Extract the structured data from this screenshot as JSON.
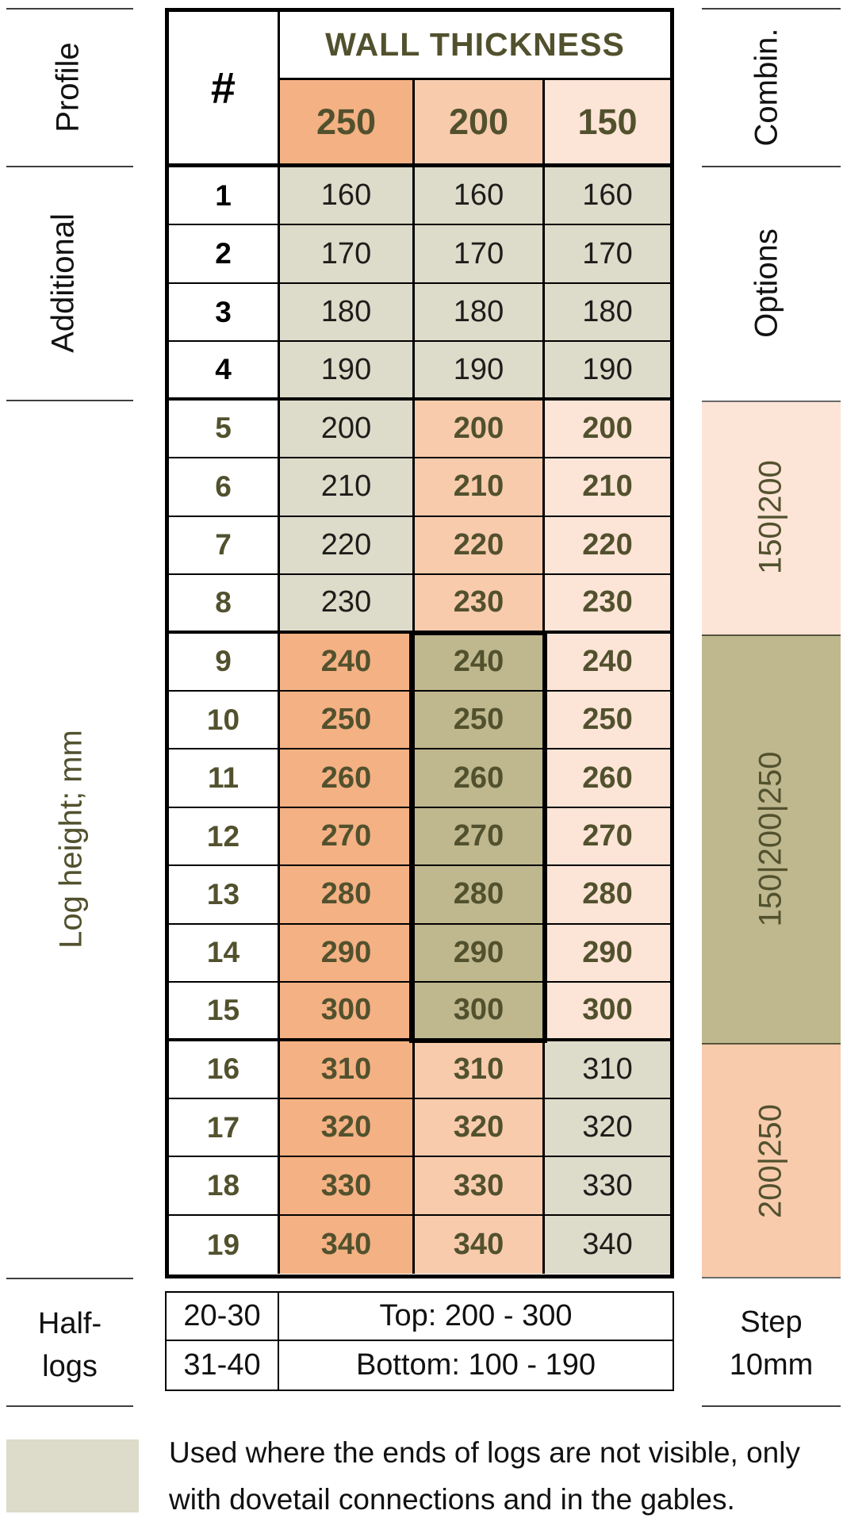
{
  "colors": {
    "orange": "#F4B183",
    "lorange": "#F8CBAD",
    "peach": "#FCE4D6",
    "khaki": "#BFB78E",
    "grey": "#DDDBC9",
    "olive": "#52512E"
  },
  "left_sidebar": {
    "profile": "Profile",
    "additional": "Additional",
    "log_height": "Log height; mm",
    "half_logs": [
      "Half-",
      "logs"
    ]
  },
  "right_sidebar": {
    "combination": "Combin.",
    "options": "Options",
    "bands": [
      {
        "label": "150|200"
      },
      {
        "label": "150|200|250"
      },
      {
        "label": "200|250"
      }
    ],
    "step": [
      "Step",
      "10mm"
    ]
  },
  "table": {
    "header": {
      "number_column": "#",
      "group_title": "WALL THICKNESS",
      "thickness_columns": [
        "250",
        "200",
        "150"
      ]
    },
    "rows": [
      {
        "num": "1",
        "group": "options",
        "values": [
          "160",
          "160",
          "160"
        ]
      },
      {
        "num": "2",
        "group": "options",
        "values": [
          "170",
          "170",
          "170"
        ]
      },
      {
        "num": "3",
        "group": "options",
        "values": [
          "180",
          "180",
          "180"
        ]
      },
      {
        "num": "4",
        "group": "options",
        "values": [
          "190",
          "190",
          "190"
        ]
      },
      {
        "num": "5",
        "group": "150_200",
        "values": [
          "200",
          "200",
          "200"
        ]
      },
      {
        "num": "6",
        "group": "150_200",
        "values": [
          "210",
          "210",
          "210"
        ]
      },
      {
        "num": "7",
        "group": "150_200",
        "values": [
          "220",
          "220",
          "220"
        ]
      },
      {
        "num": "8",
        "group": "150_200",
        "values": [
          "230",
          "230",
          "230"
        ]
      },
      {
        "num": "9",
        "group": "150_200_250",
        "values": [
          "240",
          "240",
          "240"
        ]
      },
      {
        "num": "10",
        "group": "150_200_250",
        "values": [
          "250",
          "250",
          "250"
        ]
      },
      {
        "num": "11",
        "group": "150_200_250",
        "values": [
          "260",
          "260",
          "260"
        ]
      },
      {
        "num": "12",
        "group": "150_200_250",
        "values": [
          "270",
          "270",
          "270"
        ]
      },
      {
        "num": "13",
        "group": "150_200_250",
        "values": [
          "280",
          "280",
          "280"
        ]
      },
      {
        "num": "14",
        "group": "150_200_250",
        "values": [
          "290",
          "290",
          "290"
        ]
      },
      {
        "num": "15",
        "group": "150_200_250",
        "values": [
          "300",
          "300",
          "300"
        ]
      },
      {
        "num": "16",
        "group": "200_250",
        "values": [
          "310",
          "310",
          "310"
        ]
      },
      {
        "num": "17",
        "group": "200_250",
        "values": [
          "320",
          "320",
          "320"
        ]
      },
      {
        "num": "18",
        "group": "200_250",
        "values": [
          "330",
          "330",
          "330"
        ]
      },
      {
        "num": "19",
        "group": "200_250",
        "values": [
          "340",
          "340",
          "340"
        ]
      }
    ]
  },
  "half_logs": {
    "rows": [
      {
        "range": "20-30",
        "value": "Top: 200 - 300"
      },
      {
        "range": "31-40",
        "value": "Bottom: 100 - 190"
      }
    ]
  },
  "footer": {
    "note": [
      "Used where the ends of logs are not visible, only",
      "with dovetail connections and in the gables."
    ]
  }
}
